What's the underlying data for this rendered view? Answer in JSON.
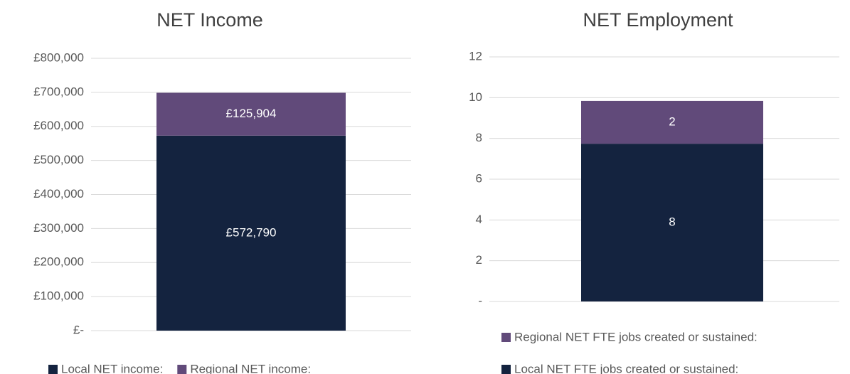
{
  "chart_data": [
    {
      "type": "stacked_bar",
      "title": "NET Income",
      "categories": [
        null
      ],
      "series": [
        {
          "name": "Local NET income:",
          "color": "#14233f",
          "values": [
            572790
          ],
          "value_labels": [
            "£572,790"
          ]
        },
        {
          "name": "Regional NET income:",
          "color": "#614a7a",
          "values": [
            125904
          ],
          "value_labels": [
            "£125,904"
          ]
        }
      ],
      "ylim": [
        0,
        800000
      ],
      "yticks": [
        {
          "value": 0,
          "label": "£-"
        },
        {
          "value": 100000,
          "label": "£100,000"
        },
        {
          "value": 200000,
          "label": "£200,000"
        },
        {
          "value": 300000,
          "label": "£300,000"
        },
        {
          "value": 400000,
          "label": "£400,000"
        },
        {
          "value": 500000,
          "label": "£500,000"
        },
        {
          "value": 600000,
          "label": "£600,000"
        },
        {
          "value": 700000,
          "label": "£700,000"
        },
        {
          "value": 800000,
          "label": "£800,000"
        }
      ],
      "grid": true,
      "legend": "bottom",
      "legend_direction": "horizontal"
    },
    {
      "type": "stacked_bar",
      "title": "NET Employment",
      "categories": [
        null
      ],
      "series": [
        {
          "name": "Local NET FTE jobs created or sustained:",
          "color": "#14233f",
          "values": [
            7.74
          ],
          "value_labels": [
            "8"
          ]
        },
        {
          "name": "Regional NET FTE jobs created or sustained:",
          "color": "#614a7a",
          "values": [
            2.1
          ],
          "value_labels": [
            "2"
          ]
        }
      ],
      "ylim": [
        0,
        12
      ],
      "yticks": [
        {
          "value": 0,
          "label": "-"
        },
        2,
        4,
        6,
        8,
        10,
        12
      ],
      "grid": true,
      "legend": "bottom",
      "legend_direction": "vertical"
    }
  ]
}
